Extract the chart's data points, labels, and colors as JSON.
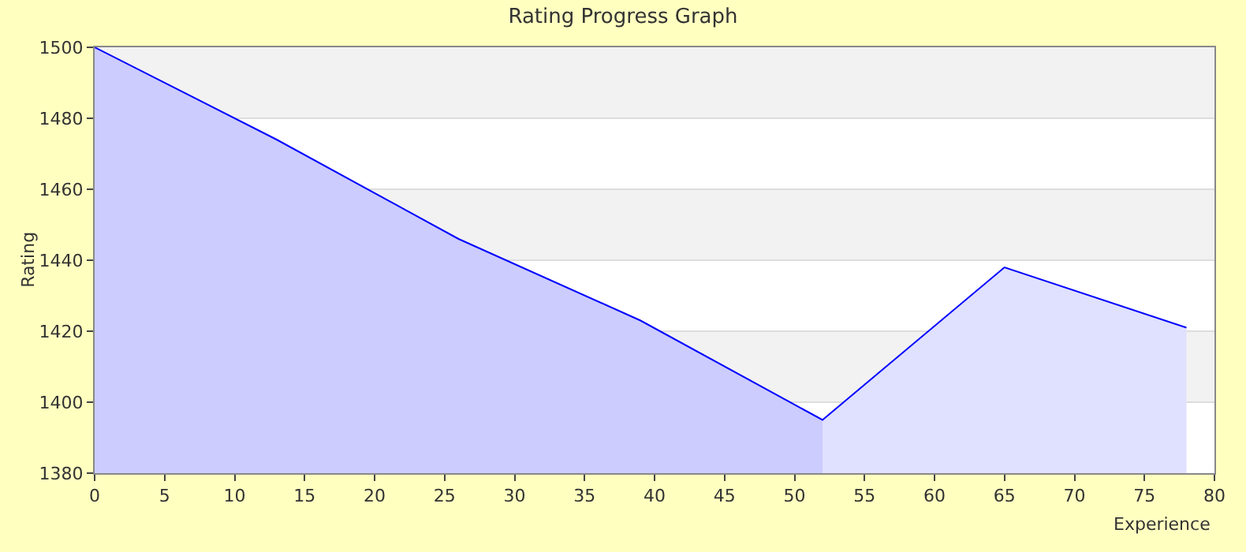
{
  "chart_data": {
    "type": "line",
    "title": "Rating Progress Graph",
    "xlabel": "Experience",
    "ylabel": "Rating",
    "series": [
      {
        "type": "area",
        "color": "#ccccff",
        "x": [
          0,
          13,
          26,
          39,
          52
        ],
        "values": [
          1500,
          1474,
          1446,
          1423,
          1395
        ]
      },
      {
        "type": "area",
        "color": "#e0e0ff",
        "x": [
          52,
          65,
          78
        ],
        "values": [
          1395,
          1438,
          1421
        ]
      },
      {
        "color": "#0000ff",
        "x": [
          0,
          13,
          26,
          39,
          52,
          65,
          78
        ],
        "values": [
          1500,
          1474,
          1446,
          1423,
          1395,
          1438,
          1421
        ]
      }
    ],
    "xlim": [
      0,
      80
    ],
    "xticks": [
      0,
      5,
      10,
      15,
      20,
      25,
      30,
      35,
      40,
      45,
      50,
      55,
      60,
      65,
      70,
      75,
      80
    ],
    "ylim": [
      1380,
      1500
    ],
    "yticks": [
      1380,
      1400,
      1420,
      1440,
      1460,
      1480,
      1500
    ],
    "grid": "y",
    "marker": "none"
  }
}
